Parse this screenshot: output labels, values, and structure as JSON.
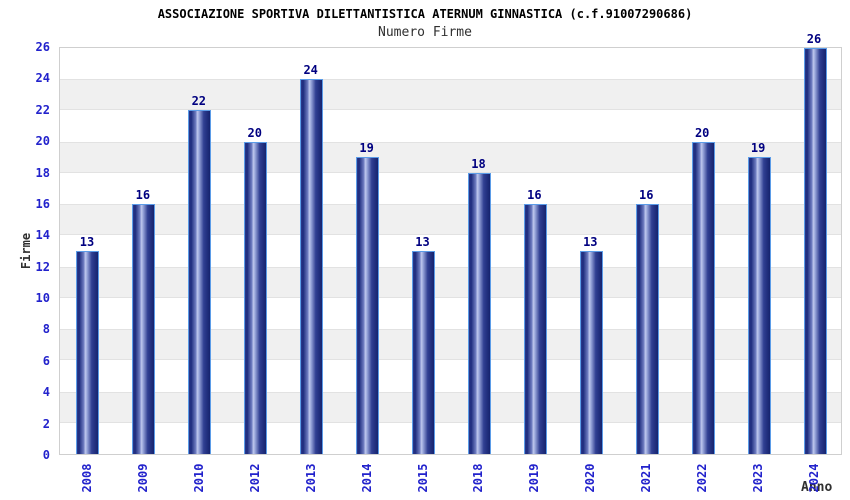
{
  "header": {
    "title": "ASSOCIAZIONE SPORTIVA DILETTANTISTICA ATERNUM GINNASTICA (c.f.91007290686)",
    "subtitle": "Numero Firme"
  },
  "chart_data": {
    "type": "bar",
    "title": "ASSOCIAZIONE SPORTIVA DILETTANTISTICA ATERNUM GINNASTICA (c.f.91007290686)",
    "subtitle": "Numero Firme",
    "xlabel": "Anno",
    "ylabel": "Firme",
    "categories": [
      "2008",
      "2009",
      "2010",
      "2012",
      "2013",
      "2014",
      "2015",
      "2018",
      "2019",
      "2020",
      "2021",
      "2022",
      "2023",
      "2024"
    ],
    "values": [
      13,
      16,
      22,
      20,
      24,
      19,
      13,
      18,
      16,
      13,
      16,
      20,
      19,
      26
    ],
    "ylim": [
      0,
      26
    ],
    "ytick_step": 2,
    "grid": "alternating horizontal gray stripes every 2 units",
    "legend": "none",
    "value_labels": "above bars",
    "colors": {
      "bar_gradient_dark": "#1c2a7c",
      "bar_gradient_light": "#bfc8ee",
      "bar_border": "#5b9ce8",
      "tick_label": "#2222cc",
      "value_label": "#000080",
      "axis_title": "#303030",
      "title": "#000000",
      "subtitle": "#303030",
      "stripe": "#f0f0f0",
      "stripe_edge": "#e2e2e2",
      "plot_border": "#cfcfcf",
      "background": "#ffffff"
    }
  }
}
